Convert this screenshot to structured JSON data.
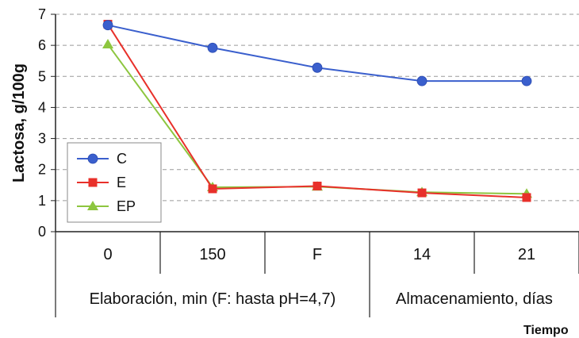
{
  "chart_data": {
    "type": "line",
    "ylabel": "Lactosa, g/100g",
    "xlabel": "Tiempo",
    "categories": [
      "0",
      "150",
      "F",
      "14",
      "21"
    ],
    "groups": [
      {
        "label": "Elaboración, min (F: hasta pH=4,7)",
        "categories": [
          "0",
          "150",
          "F"
        ]
      },
      {
        "label": "Almacenamiento, días",
        "categories": [
          "14",
          "21"
        ]
      }
    ],
    "ylim": [
      0,
      7
    ],
    "yticks": [
      0,
      1,
      2,
      3,
      4,
      5,
      6,
      7
    ],
    "grid": "horizontal dashed",
    "legend_position": "left",
    "series": [
      {
        "name": "C",
        "values": [
          6.65,
          5.92,
          5.28,
          4.85,
          4.85
        ],
        "color": "#3a5fcd",
        "marker": "circle"
      },
      {
        "name": "E",
        "values": [
          6.68,
          1.38,
          1.47,
          1.25,
          1.1
        ],
        "color": "#e8302a",
        "marker": "square"
      },
      {
        "name": "EP",
        "values": [
          6.03,
          1.43,
          1.45,
          1.27,
          1.22
        ],
        "color": "#8dc63f",
        "marker": "triangle"
      }
    ]
  }
}
